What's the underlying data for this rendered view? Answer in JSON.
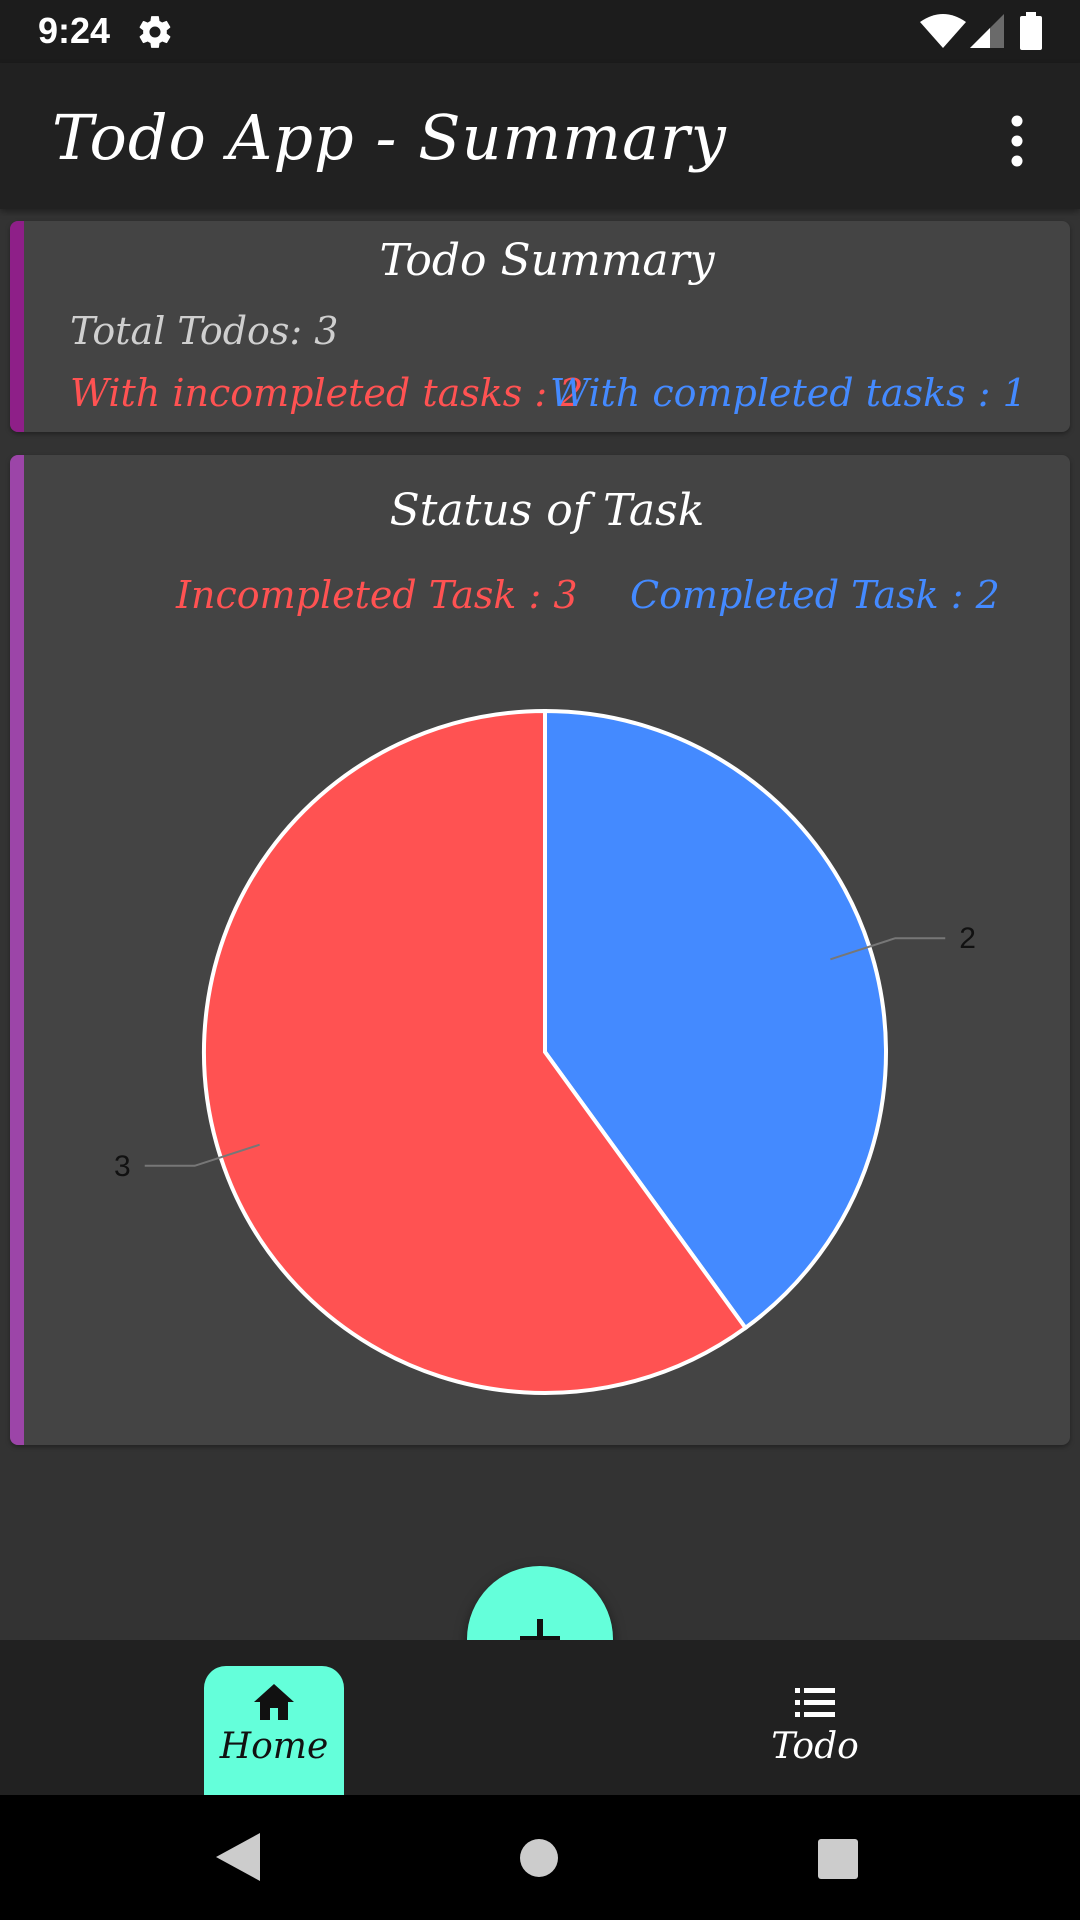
{
  "status_bar": {
    "time": "9:24",
    "icons": [
      "gear-icon",
      "wifi-icon",
      "signal-icon",
      "battery-icon"
    ]
  },
  "app_bar": {
    "title": "Todo App - Summary",
    "menu_icon": "more-vertical-icon"
  },
  "summary_card": {
    "title": "Todo Summary",
    "total": "Total Todos: 3",
    "incompleted": "With incompleted tasks : 2",
    "completed": "With completed tasks : 1",
    "accent_color": "#8e1f88"
  },
  "status_card": {
    "title": "Status of Task",
    "incompleted_legend": "Incompleted Task : 3",
    "completed_legend": "Completed Task : 2",
    "accent_color": "#9c45a8"
  },
  "chart_data": {
    "type": "pie",
    "slices": [
      {
        "name": "Completed Task",
        "value": 2,
        "label": "2",
        "color": "#448aff"
      },
      {
        "name": "Incompleted Task",
        "value": 3,
        "label": "3",
        "color": "#ff5252"
      }
    ],
    "start_angle": "12 o'clock",
    "direction": "clockwise",
    "labels": "outside with leader lines",
    "legend": "top"
  },
  "fab": {
    "icon": "plus-icon",
    "color": "#64ffda"
  },
  "bottom_nav": {
    "items": [
      {
        "label": "Home",
        "icon": "home-icon",
        "active": true
      },
      {
        "label": "Todo",
        "icon": "list-icon",
        "active": false
      }
    ],
    "active_color": "#64ffda"
  },
  "system_nav": {
    "icons": [
      "back-icon",
      "home-circle-icon",
      "recents-icon"
    ]
  }
}
